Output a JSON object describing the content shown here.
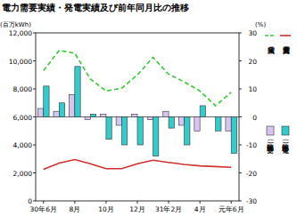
{
  "chart_data": {
    "type": "bar",
    "title": "電力需要実績・発電実績及び前年同月比の推移",
    "ylabel": "(百万kWh)",
    "y2label": "(%)",
    "categories": [
      "30年6月",
      null,
      "8月",
      null,
      "10月",
      null,
      "12月",
      null,
      "31年2月",
      null,
      "4月",
      null,
      "元年6月"
    ],
    "ylim": [
      0,
      12000
    ],
    "yticks": [
      0,
      {
        "value": 2000,
        "label": "2,000"
      },
      {
        "value": 4000,
        "label": "4,000"
      },
      {
        "value": 6000,
        "label": "6,000"
      },
      {
        "value": 8000,
        "label": "8,000"
      },
      {
        "value": 10000,
        "label": "10,000"
      },
      {
        "value": 12000,
        "label": "12,000"
      }
    ],
    "y2lim": [
      -30,
      30
    ],
    "y2ticks": [
      -30,
      -20,
      -10,
      0,
      10,
      20,
      30
    ],
    "grid": false,
    "legend": "right",
    "series": [
      {
        "name": "発電実績",
        "type": "line",
        "line_style": "dashed",
        "color": "#33cc33",
        "values": [
          9300,
          10750,
          10550,
          8700,
          7850,
          8050,
          9000,
          10250,
          9050,
          8500,
          7850,
          6800,
          7750
        ]
      },
      {
        "name": "電力需要実績",
        "type": "line",
        "line_style": "solid",
        "color": "#d03030",
        "values": [
          2250,
          2700,
          2950,
          2650,
          2300,
          2300,
          2650,
          2900,
          2750,
          2600,
          2500,
          2450,
          2400
        ]
      },
      {
        "name": "前年同月比(需要)",
        "type": "bar",
        "axis": "y2",
        "color": "#d8c4f0",
        "values": [
          3,
          2,
          8,
          -1,
          1,
          -3,
          1,
          -1,
          2,
          -3,
          -5,
          0,
          -5
        ]
      },
      {
        "name": "前年同月比(発電)",
        "type": "bar",
        "axis": "y2",
        "color": "#33cccc",
        "values": [
          11,
          5,
          18,
          1,
          -8,
          -10,
          -10,
          -14,
          -4,
          -10,
          4,
          -5,
          -13
        ]
      }
    ]
  }
}
